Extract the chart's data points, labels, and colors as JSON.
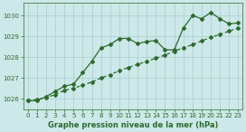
{
  "title": "Graphe pression niveau de la mer (hPa)",
  "background_color": "#cce8e8",
  "grid_color": "#aacccc",
  "line_color": "#2d6a2d",
  "xlim": [
    -0.5,
    23.5
  ],
  "ylim": [
    1025.5,
    1030.6
  ],
  "xticks": [
    0,
    1,
    2,
    3,
    4,
    5,
    6,
    7,
    8,
    9,
    10,
    11,
    12,
    13,
    14,
    15,
    16,
    17,
    18,
    19,
    20,
    21,
    22,
    23
  ],
  "yticks": [
    1026,
    1027,
    1028,
    1029,
    1030
  ],
  "s1_x": [
    0,
    1,
    2,
    3,
    4,
    5,
    6,
    7,
    8,
    9,
    10,
    11,
    12,
    13,
    14,
    15,
    16,
    17,
    18,
    19,
    20,
    21,
    22,
    23
  ],
  "s1_y": [
    1025.9,
    1025.9,
    1026.1,
    1026.35,
    1026.6,
    1026.7,
    1027.25,
    1027.8,
    1028.45,
    1028.6,
    1028.9,
    1028.9,
    1028.65,
    1028.75,
    1028.8,
    1028.35,
    1028.35,
    1029.4,
    1030.0,
    1029.85,
    1030.15,
    1029.85,
    1029.6,
    1029.65
  ],
  "s2_x": [
    0,
    1,
    2,
    3,
    4,
    5,
    6,
    7,
    8,
    9,
    10,
    11,
    12,
    13,
    14,
    15,
    16,
    17,
    18,
    19,
    20,
    21,
    22,
    23
  ],
  "s2_y": [
    1025.9,
    1025.95,
    1026.05,
    1026.2,
    1026.4,
    1026.5,
    1026.65,
    1026.8,
    1027.0,
    1027.15,
    1027.35,
    1027.5,
    1027.65,
    1027.8,
    1027.95,
    1028.1,
    1028.28,
    1028.45,
    1028.6,
    1028.78,
    1028.95,
    1029.1,
    1029.25,
    1029.4
  ],
  "marker": "D",
  "markersize": 2.0,
  "linewidth": 0.9,
  "tick_fontsize": 5.0,
  "xlabel_fontsize": 6.0
}
